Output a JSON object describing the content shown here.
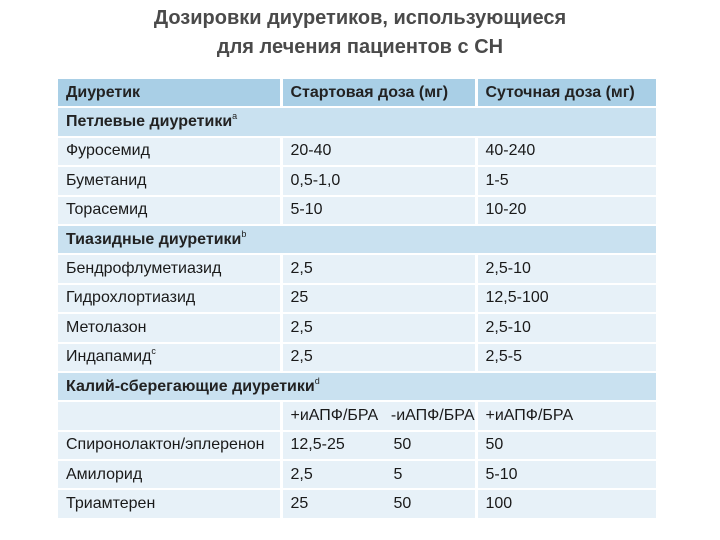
{
  "title": {
    "line1": "Дозировки диуретиков, использующиеся",
    "line2": "для лечения пациентов с СН"
  },
  "columns": [
    "Диуретик",
    "Стартовая доза (мг)",
    "Суточная доза (мг)"
  ],
  "groups": {
    "loop": {
      "label": "Петлевые диуретики",
      "mark": "a"
    },
    "thiazide": {
      "label": "Тиазидные диуретики",
      "mark": "b"
    },
    "potassium": {
      "label": "Калий-сберегающие диуретики",
      "mark": "d"
    }
  },
  "loop_rows": [
    {
      "name": "Фуросемид",
      "start": "20-40",
      "daily": "40-240"
    },
    {
      "name": "Буметанид",
      "start": "0,5-1,0",
      "daily": "1-5"
    },
    {
      "name": "Торасемид",
      "start": "5-10",
      "daily": "10-20"
    }
  ],
  "thiazide_rows": [
    {
      "name": "Бендрофлуметиазид",
      "start": "2,5",
      "daily": "2,5-10"
    },
    {
      "name": "Гидрохлортиазид",
      "start": "25",
      "daily": "12,5-100"
    },
    {
      "name": "Метолазон",
      "start": "2,5",
      "daily": "2,5-10"
    },
    {
      "name": "Индапамид",
      "mark": "c",
      "start": "2,5",
      "daily": "2,5-5"
    }
  ],
  "potassium_subheader": {
    "a": "+иАПФ/БРА",
    "b": "-иАПФ/БРА",
    "c": "+иАПФ/БРА"
  },
  "potassium_rows": [
    {
      "name": "Спиронолактон/эплеренон",
      "a": "12,5-25",
      "b": "50",
      "c": "50"
    },
    {
      "name": "Амилорид",
      "a": "2,5",
      "b": "5",
      "c": "5-10"
    },
    {
      "name": "Триамтерен",
      "a": "25",
      "b": "50",
      "c": "100"
    }
  ]
}
